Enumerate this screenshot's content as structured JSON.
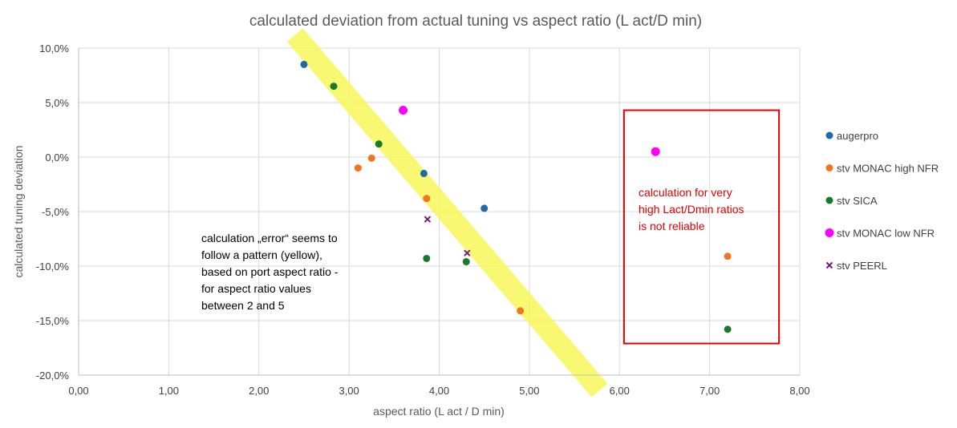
{
  "chart_data": {
    "type": "scatter",
    "title": "calculated deviation from actual tuning vs aspect ratio (L act/D min)",
    "xlabel": "aspect ratio (L act / D min)",
    "ylabel": "calculated tuning deviation",
    "xlim": [
      0,
      8
    ],
    "ylim": [
      -20,
      10
    ],
    "x_ticks": [
      "0,00",
      "1,00",
      "2,00",
      "3,00",
      "4,00",
      "5,00",
      "6,00",
      "7,00",
      "8,00"
    ],
    "y_ticks": [
      "10,0%",
      "5,0%",
      "0,0%",
      "-5,0%",
      "-10,0%",
      "-15,0%",
      "-20,0%"
    ],
    "grid": true,
    "legend_position": "right",
    "series": [
      {
        "name": "augerpro",
        "color": "#1f6aa5",
        "marker": "circle",
        "points": [
          [
            2.5,
            8.5
          ],
          [
            3.83,
            -1.5
          ],
          [
            4.5,
            -4.7
          ]
        ]
      },
      {
        "name": "stv MONAC high NFR",
        "color": "#f47421",
        "marker": "circle",
        "points": [
          [
            3.1,
            -1.0
          ],
          [
            3.25,
            -0.1
          ],
          [
            3.86,
            -3.8
          ],
          [
            4.9,
            -14.1
          ],
          [
            7.2,
            -9.1
          ]
        ]
      },
      {
        "name": "stv SICA",
        "color": "#1a7a2a",
        "marker": "circle",
        "points": [
          [
            2.83,
            6.5
          ],
          [
            3.33,
            1.2
          ],
          [
            3.86,
            -9.3
          ],
          [
            4.3,
            -9.6
          ],
          [
            7.2,
            -15.8
          ]
        ]
      },
      {
        "name": "stv MONAC low NFR",
        "color": "#ff00ff",
        "marker": "circle-large",
        "points": [
          [
            3.6,
            4.3
          ],
          [
            6.4,
            0.5
          ]
        ]
      },
      {
        "name": "stv PEERL",
        "color": "#7a1a7a",
        "marker": "x",
        "points": [
          [
            3.87,
            -5.7
          ],
          [
            4.31,
            -8.8
          ]
        ]
      }
    ],
    "annotations": {
      "pattern_note": [
        "calculation „error“ seems to",
        "follow a pattern (yellow),",
        "based on port aspect ratio -",
        "for aspect ratio values",
        "between 2 and 5"
      ],
      "reliability_note": [
        "calculation for very",
        "high Lact/Dmin ratios",
        "is not reliable"
      ],
      "trend_band": {
        "color": "#f7f75a",
        "from": [
          2.4,
          11.2
        ],
        "to": [
          5.78,
          -21.4
        ]
      },
      "highlight_box": {
        "color": "#e00000",
        "x_range": [
          6.05,
          7.77
        ],
        "y_range": [
          -17.1,
          4.3
        ]
      }
    }
  }
}
